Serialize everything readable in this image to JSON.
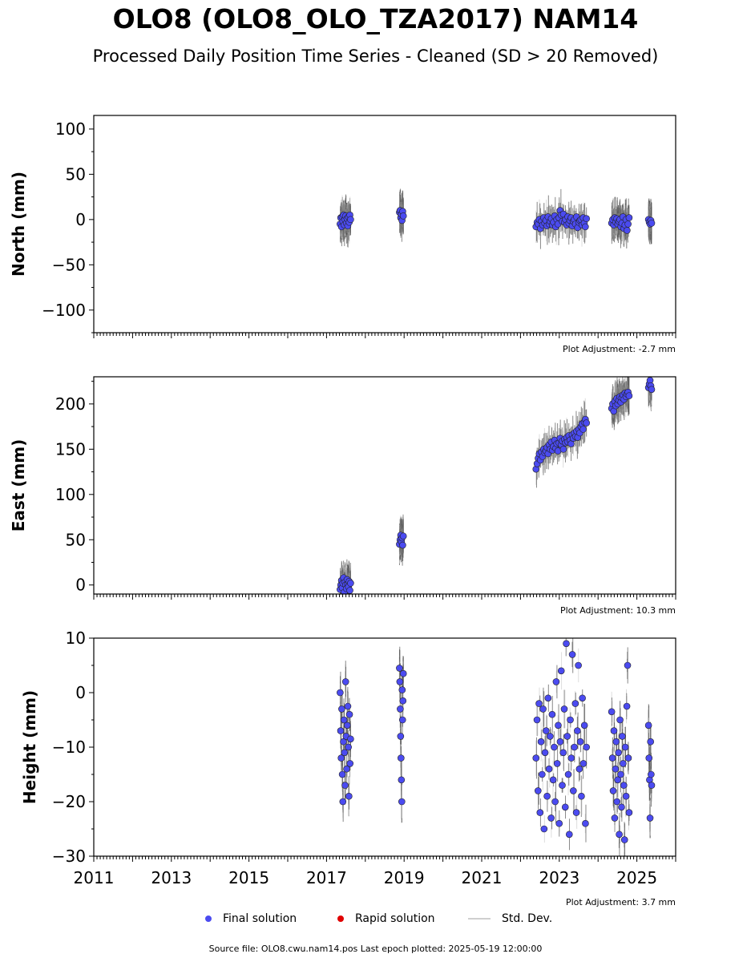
{
  "title": "OLO8 (OLO8_OLO_TZA2017) NAM14",
  "subtitle": "Processed Daily Position Time Series - Cleaned (SD > 20 Removed)",
  "colors": {
    "final": "#4b4bf0",
    "rapid": "#e00000",
    "stddev": "#cfcfcf",
    "errbar": "#555555"
  },
  "legend": {
    "final": "Final solution",
    "rapid": "Rapid solution",
    "stddev": "Std. Dev."
  },
  "footer": "Source file: OLO8.cwu.nam14.pos  Last epoch plotted: 2025-05-19 12:00:00",
  "chart_data": [
    {
      "type": "scatter",
      "ylabel": "North (mm)",
      "adjustment": "Plot Adjustment: -2.7 mm",
      "xlim": [
        2011,
        2026
      ],
      "ylim": [
        -125,
        115
      ],
      "yticks": [
        100,
        50,
        0,
        -50,
        -100
      ],
      "ytick_labels": [
        "100",
        "50",
        "0",
        "−50",
        "−100"
      ],
      "xtick_labels_shown": false,
      "segments": [
        {
          "start": 2017.35,
          "end": 2017.62,
          "values": [
            -5,
            2,
            -8,
            3,
            -2,
            5,
            -6,
            0,
            4,
            -4,
            1,
            -7,
            3,
            -3,
            5,
            0
          ]
        },
        {
          "start": 2018.88,
          "end": 2018.98,
          "values": [
            8,
            10,
            2,
            6,
            -1,
            9,
            4
          ]
        },
        {
          "start": 2022.4,
          "end": 2023.7,
          "values": [
            -8,
            -3,
            -5,
            0,
            -10,
            -2,
            -6,
            2,
            -4,
            -1,
            -7,
            3,
            -5,
            -2,
            1,
            -6,
            -3,
            4,
            -8,
            0,
            -5,
            2,
            10,
            5,
            -2,
            6,
            -3,
            0,
            -6,
            3,
            -4,
            -1,
            2,
            -7,
            -2,
            0,
            -5,
            3,
            -9,
            -3,
            -1,
            0,
            -6,
            2,
            -4,
            -8,
            1
          ]
        },
        {
          "start": 2024.35,
          "end": 2024.8,
          "values": [
            -4,
            0,
            -6,
            2,
            -3,
            1,
            -5,
            -2,
            0,
            -8,
            -4,
            3,
            -10,
            -6,
            0,
            -12,
            -5,
            2
          ]
        },
        {
          "start": 2025.3,
          "end": 2025.38,
          "values": [
            0,
            -3,
            -5,
            -1,
            -4
          ]
        }
      ]
    },
    {
      "type": "scatter",
      "ylabel": "East (mm)",
      "adjustment": "Plot Adjustment: 10.3 mm",
      "xlim": [
        2011,
        2026
      ],
      "ylim": [
        -10,
        230
      ],
      "yticks": [
        200,
        150,
        100,
        50,
        0
      ],
      "ytick_labels": [
        "200",
        "150",
        "100",
        "50",
        "0"
      ],
      "xtick_labels_shown": false,
      "segments": [
        {
          "start": 2017.35,
          "end": 2017.62,
          "values": [
            -5,
            0,
            5,
            -3,
            2,
            8,
            -8,
            3,
            0,
            -4,
            6,
            1,
            -2,
            4,
            -6,
            2
          ]
        },
        {
          "start": 2018.88,
          "end": 2018.98,
          "values": [
            45,
            50,
            55,
            48,
            52,
            44,
            54
          ]
        },
        {
          "start": 2022.4,
          "end": 2023.7,
          "values": [
            128,
            134,
            140,
            145,
            138,
            147,
            142,
            150,
            146,
            148,
            152,
            145,
            155,
            150,
            158,
            149,
            153,
            160,
            151,
            156,
            148,
            157,
            162,
            155,
            159,
            150,
            161,
            157,
            163,
            158,
            165,
            160,
            156,
            166,
            162,
            168,
            164,
            170,
            163,
            172,
            168,
            175,
            178,
            172,
            180,
            183,
            179
          ]
        },
        {
          "start": 2024.35,
          "end": 2024.8,
          "values": [
            195,
            200,
            192,
            203,
            198,
            206,
            200,
            204,
            208,
            202,
            207,
            210,
            205,
            212,
            208,
            211,
            213,
            209
          ]
        },
        {
          "start": 2025.3,
          "end": 2025.38,
          "values": [
            218,
            222,
            226,
            220,
            216
          ]
        }
      ]
    },
    {
      "type": "scatter",
      "ylabel": "Height (mm)",
      "adjustment": "Plot Adjustment: 3.7 mm",
      "xlim": [
        2011,
        2026
      ],
      "ylim": [
        -30,
        10
      ],
      "yticks": [
        10,
        0,
        -10,
        -20,
        -30
      ],
      "ytick_labels": [
        "10",
        "0",
        "−10",
        "−20",
        "−30"
      ],
      "xticks": [
        2011,
        2013,
        2015,
        2017,
        2019,
        2021,
        2023,
        2025
      ],
      "xtick_labels": [
        "2011",
        "2013",
        "2015",
        "2017",
        "2019",
        "2021",
        "2023",
        "2025"
      ],
      "xtick_labels_shown": true,
      "segments": [
        {
          "start": 2017.35,
          "end": 2017.62,
          "values": [
            0,
            -7,
            -12,
            -3,
            -15,
            -20,
            -9,
            -5,
            -11,
            -17,
            2,
            -8,
            -14,
            -6,
            -2.5,
            -10,
            -19,
            -4,
            -13,
            -8.5
          ]
        },
        {
          "start": 2018.88,
          "end": 2018.98,
          "values": [
            4.5,
            2,
            -3,
            -8,
            -12,
            -16,
            -20,
            0.5,
            -5,
            -1.5,
            3.5
          ]
        },
        {
          "start": 2022.4,
          "end": 2023.7,
          "values": [
            -12,
            -5,
            -18,
            -2,
            -22,
            -9,
            -15,
            -3,
            -25,
            -11,
            -7,
            -19,
            -1,
            -14,
            -8,
            -23,
            -4,
            -16,
            -10,
            -20,
            2,
            -13,
            -6,
            -24,
            -9,
            4,
            -17,
            -11,
            -3,
            -21,
            9,
            -8,
            -15,
            -26,
            -5,
            -12,
            7,
            -18,
            -10,
            -2,
            -22,
            -7,
            5,
            -14,
            -9,
            -19,
            -1,
            -13,
            -6,
            -24,
            -10
          ]
        },
        {
          "start": 2024.35,
          "end": 2024.8,
          "values": [
            -3.5,
            -12,
            -18,
            -7,
            -23,
            -14,
            -9,
            -20,
            -16,
            -11,
            -26,
            -5,
            -15,
            -21,
            -8,
            -13,
            -17,
            -27,
            -10,
            -19,
            -2.5,
            5,
            -12,
            -22
          ]
        },
        {
          "start": 2025.3,
          "end": 2025.38,
          "values": [
            -6,
            -12,
            -16,
            -23,
            -9,
            -15,
            -17
          ]
        }
      ]
    }
  ]
}
